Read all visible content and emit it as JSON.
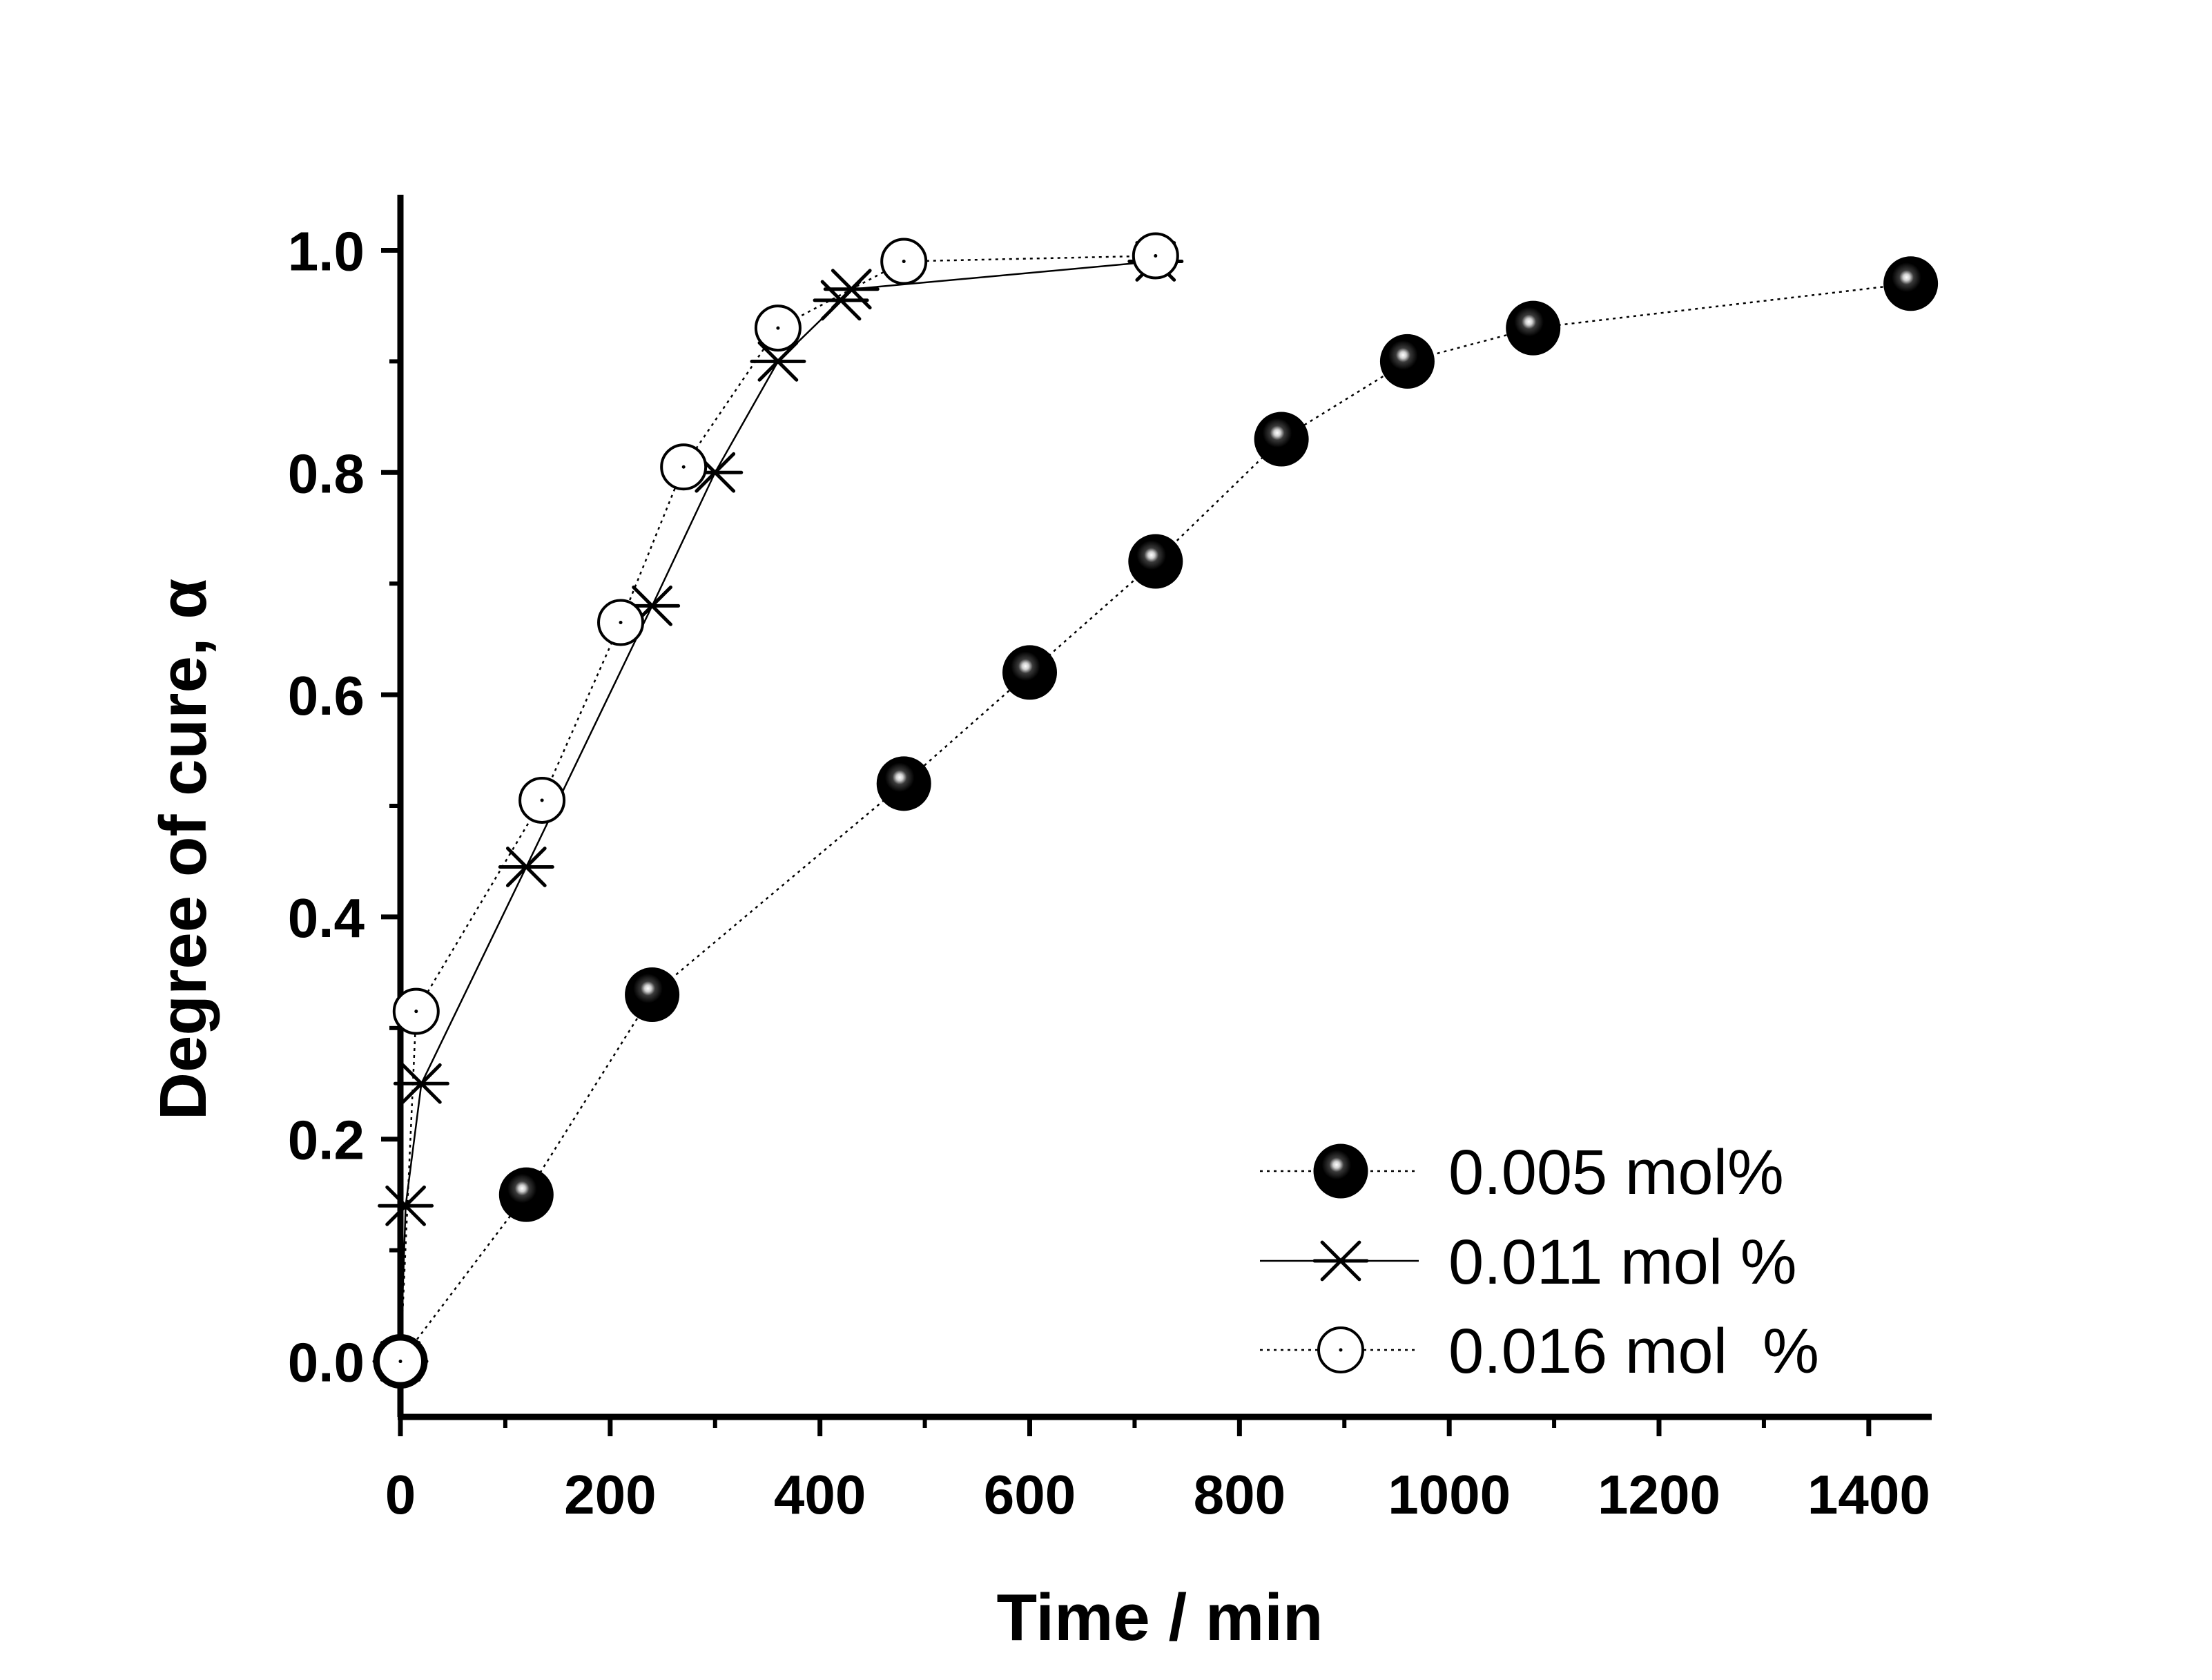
{
  "chart_data": {
    "type": "scatter",
    "title": "",
    "xlabel": "Time / min",
    "ylabel": "Degree of cure, α",
    "xlim": [
      0,
      1460
    ],
    "ylim": [
      -0.05,
      1.05
    ],
    "xticks": [
      0,
      200,
      400,
      600,
      800,
      1000,
      1200,
      1400
    ],
    "xtick_labels": [
      "0",
      "200",
      "400",
      "600",
      "800",
      "1000",
      "1200",
      "1400"
    ],
    "yticks": [
      0.0,
      0.2,
      0.4,
      0.6,
      0.8,
      1.0
    ],
    "ytick_labels": [
      "0.0",
      "0.2",
      "0.4",
      "0.6",
      "0.8",
      "1.0"
    ],
    "grid": false,
    "legend_position": "bottom-right",
    "series": [
      {
        "name": "0.005 mol%",
        "marker": "filled-sphere",
        "line": "dotted",
        "color": "#000000",
        "x": [
          0,
          120,
          240,
          480,
          600,
          720,
          840,
          960,
          1080,
          1440
        ],
        "y": [
          0.0,
          0.15,
          0.33,
          0.52,
          0.62,
          0.72,
          0.83,
          0.9,
          0.93,
          0.97
        ]
      },
      {
        "name": "0.011 mol %",
        "marker": "asterisk",
        "line": "solid",
        "color": "#000000",
        "x": [
          0,
          5,
          20,
          120,
          240,
          300,
          360,
          420,
          430,
          720
        ],
        "y": [
          0.0,
          0.14,
          0.25,
          0.445,
          0.68,
          0.8,
          0.9,
          0.955,
          0.965,
          0.99
        ]
      },
      {
        "name": "0.016 mol  %",
        "marker": "open-circle",
        "line": "dotted",
        "color": "#000000",
        "x": [
          0,
          15,
          135,
          210,
          270,
          360,
          480,
          720
        ],
        "y": [
          0.0,
          0.315,
          0.505,
          0.665,
          0.805,
          0.93,
          0.99,
          0.995
        ]
      }
    ]
  }
}
